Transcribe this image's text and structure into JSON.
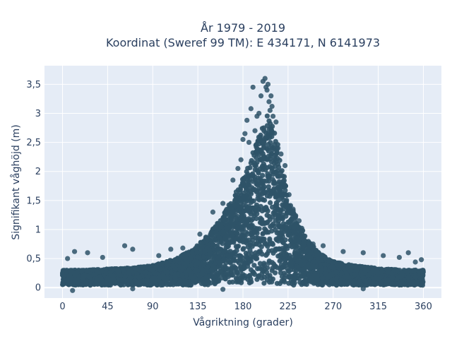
{
  "chart_data": {
    "type": "scatter",
    "title_lines": [
      "År 1979 - 2019",
      "Koordinat (Sweref 99 TM): E 434171, N 6141973"
    ],
    "xlabel": "Vågriktning (grader)",
    "ylabel": "Signifikant våghöjd (m)",
    "xlim": [
      -18,
      378
    ],
    "ylim": [
      -0.18,
      3.82
    ],
    "xticks": [
      0,
      45,
      90,
      135,
      180,
      225,
      270,
      315,
      360
    ],
    "xtick_labels": [
      "0",
      "45",
      "90",
      "135",
      "180",
      "225",
      "270",
      "315",
      "360"
    ],
    "yticks": [
      0,
      0.5,
      1,
      1.5,
      2,
      2.5,
      3,
      3.5
    ],
    "ytick_labels": [
      "0",
      "0,5",
      "1",
      "1,5",
      "2",
      "2,5",
      "3",
      "3,5"
    ],
    "grid": true,
    "colors": {
      "marker": "#2f5468",
      "plot_bg": "#e5ecf6",
      "grid": "#ffffff",
      "text": "#2a3f5f"
    },
    "density_envelope": {
      "x": [
        0,
        20,
        45,
        70,
        90,
        110,
        130,
        145,
        160,
        175,
        185,
        195,
        200,
        205,
        210,
        215,
        220,
        230,
        245,
        260,
        270,
        290,
        315,
        340,
        360
      ],
      "y_upper": [
        0.3,
        0.3,
        0.32,
        0.34,
        0.38,
        0.48,
        0.65,
        0.9,
        1.25,
        1.7,
        2.1,
        2.55,
        2.8,
        3.0,
        2.8,
        2.45,
        2.0,
        1.35,
        0.8,
        0.55,
        0.45,
        0.38,
        0.33,
        0.3,
        0.3
      ]
    },
    "points": [
      [
        5,
        0.5
      ],
      [
        12,
        0.62
      ],
      [
        25,
        0.6
      ],
      [
        40,
        0.52
      ],
      [
        62,
        0.72
      ],
      [
        70,
        0.66
      ],
      [
        96,
        0.55
      ],
      [
        108,
        0.66
      ],
      [
        120,
        0.68
      ],
      [
        137,
        0.92
      ],
      [
        150,
        1.3
      ],
      [
        160,
        1.45
      ],
      [
        170,
        1.85
      ],
      [
        175,
        2.05
      ],
      [
        178,
        2.2
      ],
      [
        180,
        2.55
      ],
      [
        182,
        2.65
      ],
      [
        184,
        2.88
      ],
      [
        186,
        2.5
      ],
      [
        188,
        3.08
      ],
      [
        190,
        3.45
      ],
      [
        192,
        2.7
      ],
      [
        194,
        2.95
      ],
      [
        196,
        3.0
      ],
      [
        198,
        3.3
      ],
      [
        200,
        3.55
      ],
      [
        201,
        2.5
      ],
      [
        202,
        3.6
      ],
      [
        203,
        3.45
      ],
      [
        204,
        3.4
      ],
      [
        205,
        3.5
      ],
      [
        206,
        3.2
      ],
      [
        207,
        3.05
      ],
      [
        208,
        3.3
      ],
      [
        209,
        3.12
      ],
      [
        210,
        2.95
      ],
      [
        213,
        2.85
      ],
      [
        215,
        2.4
      ],
      [
        218,
        2.3
      ],
      [
        222,
        2.1
      ],
      [
        226,
        1.6
      ],
      [
        230,
        1.35
      ],
      [
        236,
        1.15
      ],
      [
        250,
        0.75
      ],
      [
        260,
        0.72
      ],
      [
        280,
        0.62
      ],
      [
        300,
        0.6
      ],
      [
        320,
        0.55
      ],
      [
        336,
        0.52
      ],
      [
        345,
        0.6
      ],
      [
        352,
        0.44
      ],
      [
        358,
        0.48
      ],
      [
        10,
        -0.05
      ],
      [
        70,
        -0.02
      ],
      [
        160,
        -0.03
      ],
      [
        300,
        -0.02
      ]
    ]
  }
}
